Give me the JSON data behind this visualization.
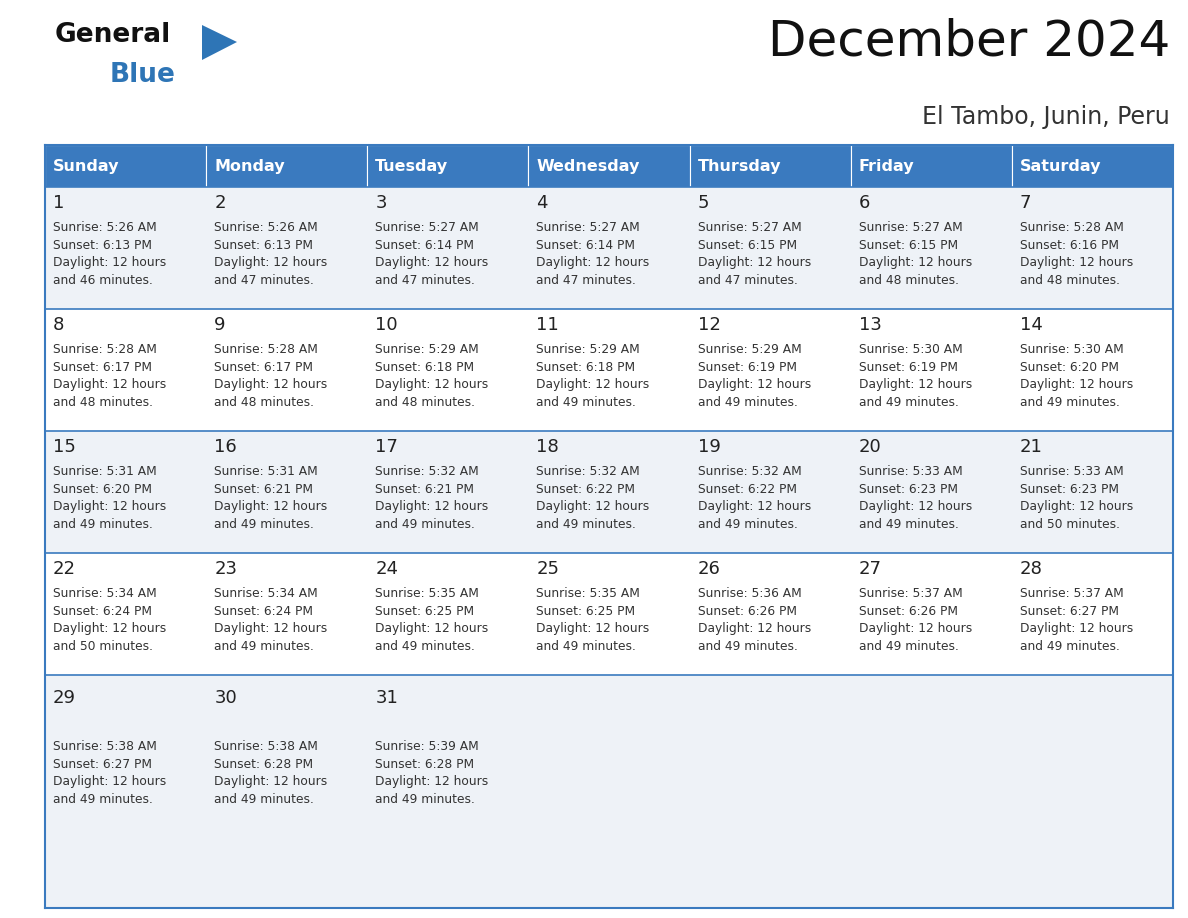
{
  "title": "December 2024",
  "subtitle": "El Tambo, Junin, Peru",
  "days_of_week": [
    "Sunday",
    "Monday",
    "Tuesday",
    "Wednesday",
    "Thursday",
    "Friday",
    "Saturday"
  ],
  "header_bg": "#3a7abf",
  "header_text": "#ffffff",
  "row_bg_odd": "#eef2f7",
  "row_bg_even": "#ffffff",
  "cell_border_color": "#3a7abf",
  "day_num_color": "#222222",
  "info_color": "#333333",
  "calendar_data": [
    [
      {
        "day": 1,
        "sunrise": "5:26 AM",
        "sunset": "6:13 PM",
        "daylight_h": "12 hours",
        "daylight_m": "and 46 minutes."
      },
      {
        "day": 2,
        "sunrise": "5:26 AM",
        "sunset": "6:13 PM",
        "daylight_h": "12 hours",
        "daylight_m": "and 47 minutes."
      },
      {
        "day": 3,
        "sunrise": "5:27 AM",
        "sunset": "6:14 PM",
        "daylight_h": "12 hours",
        "daylight_m": "and 47 minutes."
      },
      {
        "day": 4,
        "sunrise": "5:27 AM",
        "sunset": "6:14 PM",
        "daylight_h": "12 hours",
        "daylight_m": "and 47 minutes."
      },
      {
        "day": 5,
        "sunrise": "5:27 AM",
        "sunset": "6:15 PM",
        "daylight_h": "12 hours",
        "daylight_m": "and 47 minutes."
      },
      {
        "day": 6,
        "sunrise": "5:27 AM",
        "sunset": "6:15 PM",
        "daylight_h": "12 hours",
        "daylight_m": "and 48 minutes."
      },
      {
        "day": 7,
        "sunrise": "5:28 AM",
        "sunset": "6:16 PM",
        "daylight_h": "12 hours",
        "daylight_m": "and 48 minutes."
      }
    ],
    [
      {
        "day": 8,
        "sunrise": "5:28 AM",
        "sunset": "6:17 PM",
        "daylight_h": "12 hours",
        "daylight_m": "and 48 minutes."
      },
      {
        "day": 9,
        "sunrise": "5:28 AM",
        "sunset": "6:17 PM",
        "daylight_h": "12 hours",
        "daylight_m": "and 48 minutes."
      },
      {
        "day": 10,
        "sunrise": "5:29 AM",
        "sunset": "6:18 PM",
        "daylight_h": "12 hours",
        "daylight_m": "and 48 minutes."
      },
      {
        "day": 11,
        "sunrise": "5:29 AM",
        "sunset": "6:18 PM",
        "daylight_h": "12 hours",
        "daylight_m": "and 49 minutes."
      },
      {
        "day": 12,
        "sunrise": "5:29 AM",
        "sunset": "6:19 PM",
        "daylight_h": "12 hours",
        "daylight_m": "and 49 minutes."
      },
      {
        "day": 13,
        "sunrise": "5:30 AM",
        "sunset": "6:19 PM",
        "daylight_h": "12 hours",
        "daylight_m": "and 49 minutes."
      },
      {
        "day": 14,
        "sunrise": "5:30 AM",
        "sunset": "6:20 PM",
        "daylight_h": "12 hours",
        "daylight_m": "and 49 minutes."
      }
    ],
    [
      {
        "day": 15,
        "sunrise": "5:31 AM",
        "sunset": "6:20 PM",
        "daylight_h": "12 hours",
        "daylight_m": "and 49 minutes."
      },
      {
        "day": 16,
        "sunrise": "5:31 AM",
        "sunset": "6:21 PM",
        "daylight_h": "12 hours",
        "daylight_m": "and 49 minutes."
      },
      {
        "day": 17,
        "sunrise": "5:32 AM",
        "sunset": "6:21 PM",
        "daylight_h": "12 hours",
        "daylight_m": "and 49 minutes."
      },
      {
        "day": 18,
        "sunrise": "5:32 AM",
        "sunset": "6:22 PM",
        "daylight_h": "12 hours",
        "daylight_m": "and 49 minutes."
      },
      {
        "day": 19,
        "sunrise": "5:32 AM",
        "sunset": "6:22 PM",
        "daylight_h": "12 hours",
        "daylight_m": "and 49 minutes."
      },
      {
        "day": 20,
        "sunrise": "5:33 AM",
        "sunset": "6:23 PM",
        "daylight_h": "12 hours",
        "daylight_m": "and 49 minutes."
      },
      {
        "day": 21,
        "sunrise": "5:33 AM",
        "sunset": "6:23 PM",
        "daylight_h": "12 hours",
        "daylight_m": "and 50 minutes."
      }
    ],
    [
      {
        "day": 22,
        "sunrise": "5:34 AM",
        "sunset": "6:24 PM",
        "daylight_h": "12 hours",
        "daylight_m": "and 50 minutes."
      },
      {
        "day": 23,
        "sunrise": "5:34 AM",
        "sunset": "6:24 PM",
        "daylight_h": "12 hours",
        "daylight_m": "and 49 minutes."
      },
      {
        "day": 24,
        "sunrise": "5:35 AM",
        "sunset": "6:25 PM",
        "daylight_h": "12 hours",
        "daylight_m": "and 49 minutes."
      },
      {
        "day": 25,
        "sunrise": "5:35 AM",
        "sunset": "6:25 PM",
        "daylight_h": "12 hours",
        "daylight_m": "and 49 minutes."
      },
      {
        "day": 26,
        "sunrise": "5:36 AM",
        "sunset": "6:26 PM",
        "daylight_h": "12 hours",
        "daylight_m": "and 49 minutes."
      },
      {
        "day": 27,
        "sunrise": "5:37 AM",
        "sunset": "6:26 PM",
        "daylight_h": "12 hours",
        "daylight_m": "and 49 minutes."
      },
      {
        "day": 28,
        "sunrise": "5:37 AM",
        "sunset": "6:27 PM",
        "daylight_h": "12 hours",
        "daylight_m": "and 49 minutes."
      }
    ],
    [
      {
        "day": 29,
        "sunrise": "5:38 AM",
        "sunset": "6:27 PM",
        "daylight_h": "12 hours",
        "daylight_m": "and 49 minutes."
      },
      {
        "day": 30,
        "sunrise": "5:38 AM",
        "sunset": "6:28 PM",
        "daylight_h": "12 hours",
        "daylight_m": "and 49 minutes."
      },
      {
        "day": 31,
        "sunrise": "5:39 AM",
        "sunset": "6:28 PM",
        "daylight_h": "12 hours",
        "daylight_m": "and 49 minutes."
      },
      null,
      null,
      null,
      null
    ]
  ],
  "logo_general_color": "#1a1a1a",
  "logo_blue_color": "#2e75b6",
  "logo_triangle_color": "#2e75b6",
  "fig_width": 11.88,
  "fig_height": 9.18,
  "dpi": 100
}
